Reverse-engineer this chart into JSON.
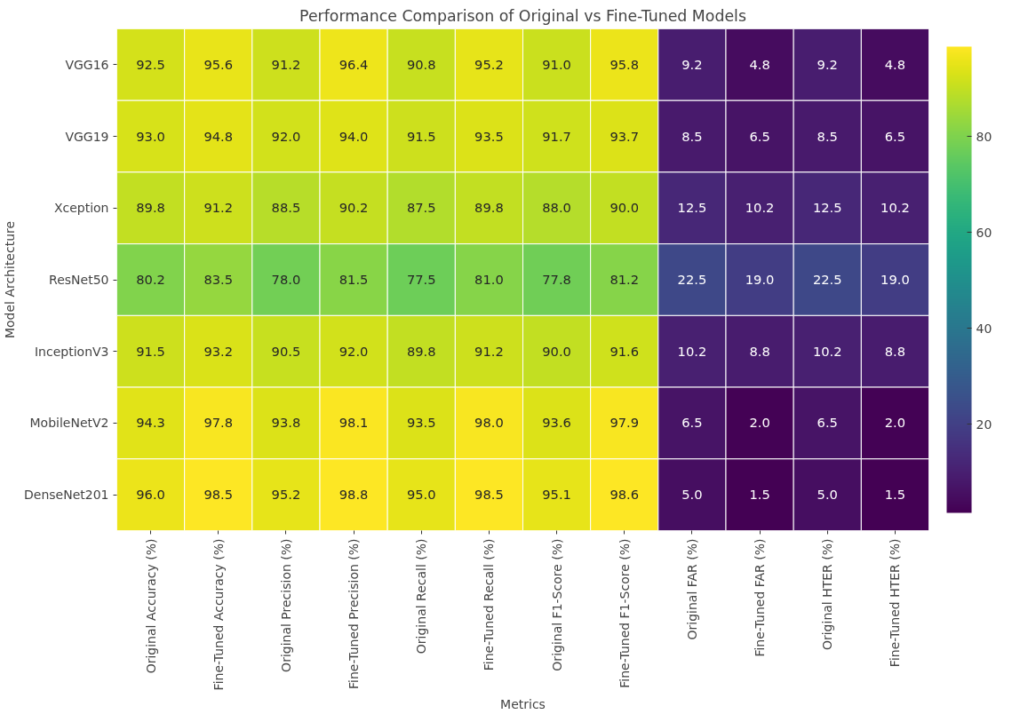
{
  "chart_data": {
    "type": "heatmap",
    "title": "Performance Comparison of Original vs Fine-Tuned Models",
    "xlabel": "Metrics",
    "ylabel": "Model Architecture",
    "categories": [
      "Original Accuracy (%)",
      "Fine-Tuned Accuracy (%)",
      "Original Precision (%)",
      "Fine-Tuned Precision (%)",
      "Original Recall (%)",
      "Fine-Tuned Recall (%)",
      "Original F1-Score (%)",
      "Fine-Tuned F1-Score (%)",
      "Original FAR (%)",
      "Fine-Tuned FAR (%)",
      "Original HTER (%)",
      "Fine-Tuned HTER (%)"
    ],
    "y_categories": [
      "VGG16",
      "VGG19",
      "Xception",
      "ResNet50",
      "InceptionV3",
      "MobileNetV2",
      "DenseNet201"
    ],
    "cells": [
      [
        92.5,
        95.6,
        91.2,
        96.4,
        90.8,
        95.2,
        91.0,
        95.8,
        9.2,
        4.8,
        9.2,
        4.8
      ],
      [
        93.0,
        94.8,
        92.0,
        94.0,
        91.5,
        93.5,
        91.7,
        93.7,
        8.5,
        6.5,
        8.5,
        6.5
      ],
      [
        89.8,
        91.2,
        88.5,
        90.2,
        87.5,
        89.8,
        88.0,
        90.0,
        12.5,
        10.2,
        12.5,
        10.2
      ],
      [
        80.2,
        83.5,
        78.0,
        81.5,
        77.5,
        81.0,
        77.8,
        81.2,
        22.5,
        19.0,
        22.5,
        19.0
      ],
      [
        91.5,
        93.2,
        90.5,
        92.0,
        89.8,
        91.2,
        90.0,
        91.6,
        10.2,
        8.8,
        10.2,
        8.8
      ],
      [
        94.3,
        97.8,
        93.8,
        98.1,
        93.5,
        98.0,
        93.6,
        97.9,
        6.5,
        2.0,
        6.5,
        2.0
      ],
      [
        96.0,
        98.5,
        95.2,
        98.8,
        95.0,
        98.5,
        95.1,
        98.6,
        5.0,
        1.5,
        5.0,
        1.5
      ]
    ],
    "cell_labels": [
      [
        "92.5",
        "95.6",
        "91.2",
        "96.4",
        "90.8",
        "95.2",
        "91.0",
        "95.8",
        "9.2",
        "4.8",
        "9.2",
        "4.8"
      ],
      [
        "93.0",
        "94.8",
        "92.0",
        "94.0",
        "91.5",
        "93.5",
        "91.7",
        "93.7",
        "8.5",
        "6.5",
        "8.5",
        "6.5"
      ],
      [
        "89.8",
        "91.2",
        "88.5",
        "90.2",
        "87.5",
        "89.8",
        "88.0",
        "90.0",
        "12.5",
        "10.2",
        "12.5",
        "10.2"
      ],
      [
        "80.2",
        "83.5",
        "78.0",
        "81.5",
        "77.5",
        "81.0",
        "77.8",
        "81.2",
        "22.5",
        "19.0",
        "22.5",
        "19.0"
      ],
      [
        "91.5",
        "93.2",
        "90.5",
        "92.0",
        "89.8",
        "91.2",
        "90.0",
        "91.6",
        "10.2",
        "8.8",
        "10.2",
        "8.8"
      ],
      [
        "94.3",
        "97.8",
        "93.8",
        "98.1",
        "93.5",
        "98.0",
        "93.6",
        "97.9",
        "6.5",
        "2.0",
        "6.5",
        "2.0"
      ],
      [
        "96.0",
        "98.5",
        "95.2",
        "98.8",
        "95.0",
        "98.5",
        "95.1",
        "98.6",
        "5.0",
        "1.5",
        "5.0",
        "1.5"
      ]
    ],
    "clim": [
      1.5,
      98.8
    ],
    "cticks": [
      20,
      40,
      60,
      80
    ]
  }
}
